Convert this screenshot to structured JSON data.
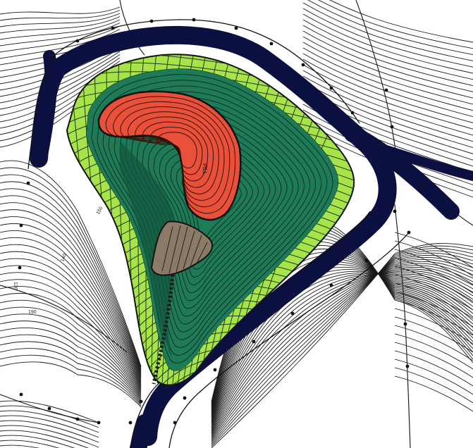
{
  "map": {
    "colors": {
      "background": "#ffffff",
      "contour": "#1a1a1a",
      "road": "#0c1040",
      "cap_edge": "#a9e34a",
      "slope_green": "#1f7a58",
      "slope_dark": "#12553d",
      "fill_red": "#e8503a",
      "brown": "#8a7a66"
    },
    "labels": {
      "fill_area": "FILL",
      "elev_a": "150",
      "elev_b": "140",
      "elev_c": "130",
      "elev_left_value": "190"
    }
  }
}
